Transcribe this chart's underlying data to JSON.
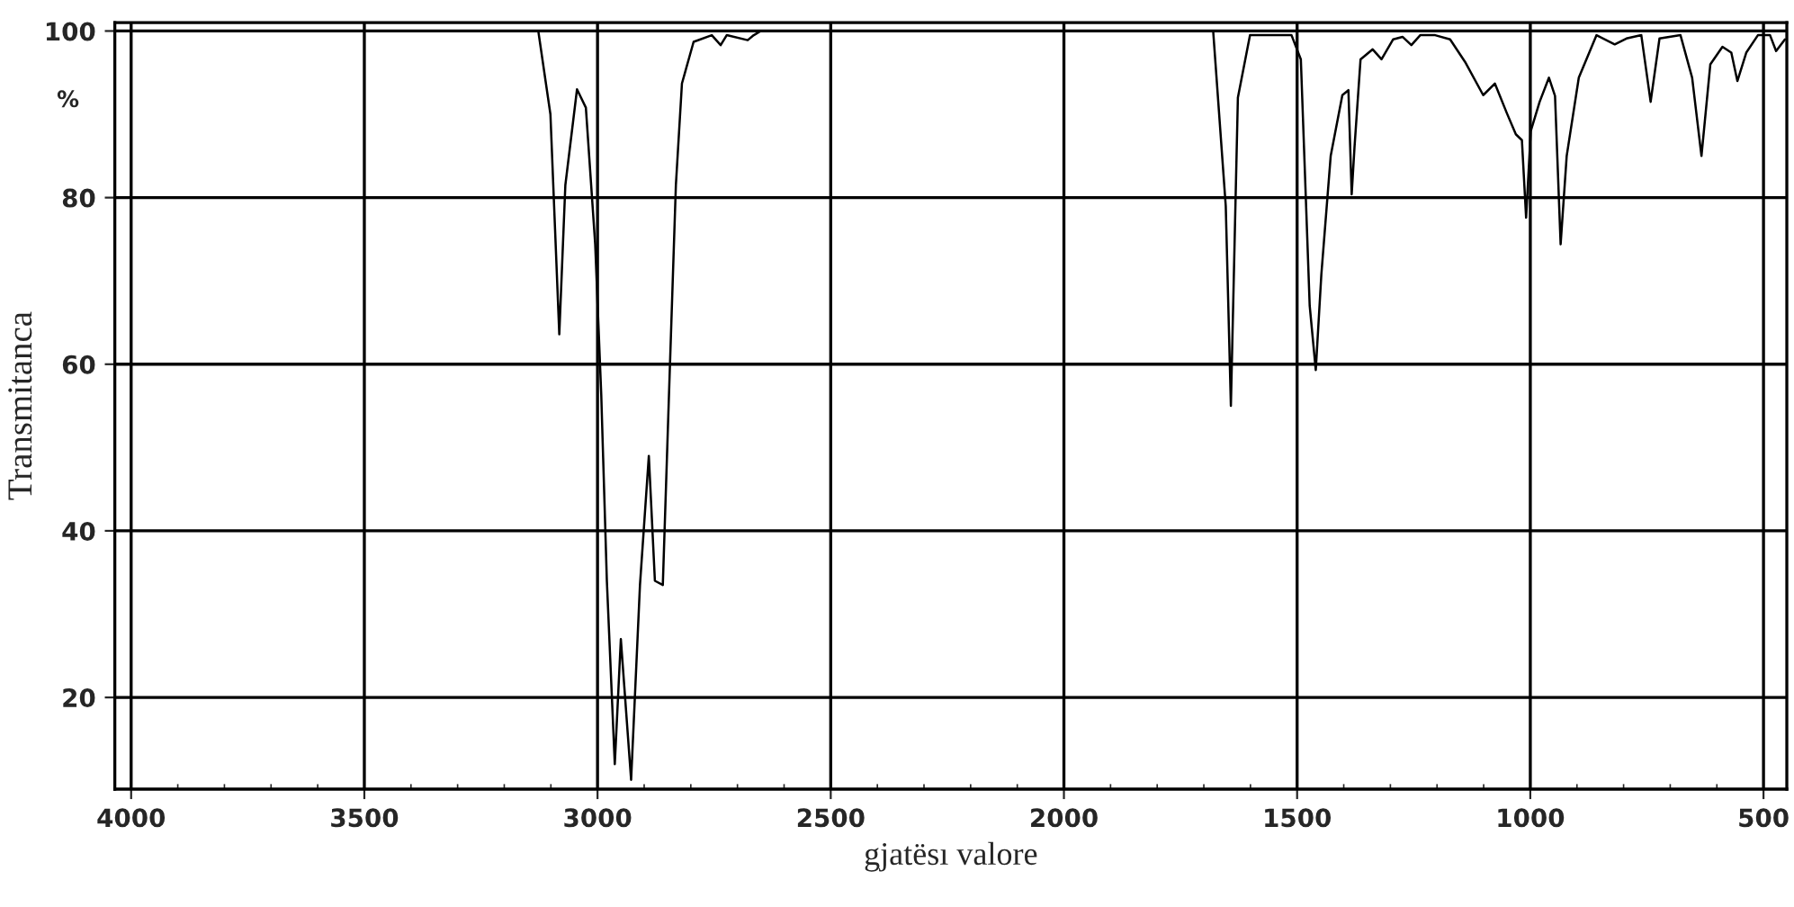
{
  "chart_data": {
    "type": "line",
    "xlabel": "gjatësı valore",
    "ylabel": "Transmitanca",
    "annotations": [
      "%"
    ],
    "xlim": [
      4035,
      450
    ],
    "ylim": [
      9,
      101
    ],
    "xticks": [
      4000,
      3500,
      3000,
      2500,
      2000,
      1500,
      1000,
      500
    ],
    "yticks": [
      20,
      40,
      60,
      80,
      100
    ],
    "grid": true,
    "marker": "none",
    "line_style": "solid",
    "series": [
      {
        "color": "#000000",
        "x": [
          4035,
          3127,
          3101,
          3082,
          3069,
          3044,
          3025,
          3005,
          2992,
          2980,
          2963,
          2950,
          2928,
          2909,
          2890,
          2877,
          2860,
          2847,
          2832,
          2819,
          2794,
          2755,
          2736,
          2723,
          2678,
          2665,
          2650,
          1680,
          1653,
          1642,
          1627,
          1601,
          1512,
          1492,
          1473,
          1460,
          1448,
          1428,
          1403,
          1390,
          1383,
          1377,
          1364,
          1338,
          1319,
          1294,
          1274,
          1255,
          1236,
          1204,
          1172,
          1140,
          1101,
          1076,
          1050,
          1031,
          1018,
          1009,
          999,
          980,
          960,
          947,
          935,
          922,
          896,
          858,
          819,
          794,
          762,
          742,
          723,
          678,
          653,
          633,
          614,
          588,
          569,
          556,
          537,
          512,
          486,
          473,
          454
        ],
        "values": [
          100,
          100,
          90,
          63.6,
          81.5,
          93,
          90.8,
          74.4,
          56.3,
          34,
          12,
          27,
          10.1,
          33.5,
          49,
          34,
          33.5,
          56,
          81.5,
          93.7,
          98.7,
          99.5,
          98.3,
          99.5,
          98.9,
          99.5,
          100,
          100,
          79,
          55,
          92,
          99.5,
          99.5,
          96.6,
          67,
          59.3,
          70.8,
          85,
          92.3,
          92.9,
          80.4,
          86,
          96.6,
          97.8,
          96.6,
          99,
          99.3,
          98.3,
          99.5,
          99.5,
          99,
          96.3,
          92.3,
          93.7,
          90.1,
          87.6,
          86.9,
          77.6,
          88,
          91.5,
          94.4,
          92.2,
          74.4,
          85,
          94.4,
          99.5,
          98.4,
          99.1,
          99.5,
          91.5,
          99.1,
          99.5,
          94.4,
          85,
          96,
          98.1,
          97.4,
          94,
          97.4,
          99.5,
          99.5,
          97.6,
          99
        ]
      }
    ]
  }
}
